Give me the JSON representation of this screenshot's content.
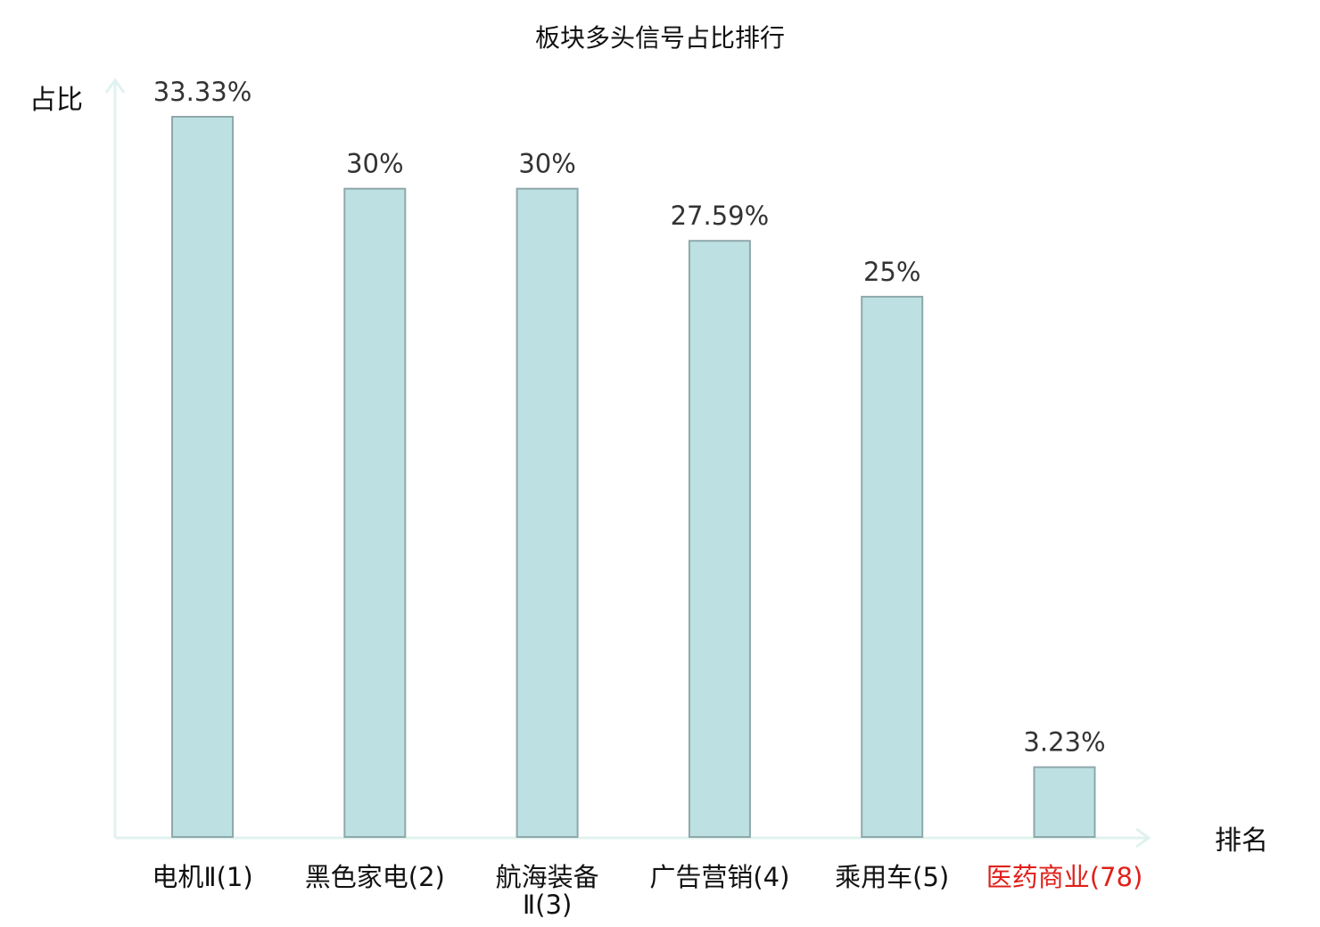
{
  "chart_data": {
    "type": "bar",
    "title": "板块多头信号占比排行",
    "ylabel": "占比",
    "xlabel": "排名",
    "categories": [
      [
        "电机Ⅱ(1)"
      ],
      [
        "黑色家电(2)"
      ],
      [
        "航海装备",
        "Ⅱ(3)"
      ],
      [
        "广告营销(4)"
      ],
      [
        "乘用车(5)"
      ],
      [
        "医药商业(78)"
      ]
    ],
    "values": [
      33.33,
      30,
      30,
      27.59,
      25,
      3.23
    ],
    "value_labels": [
      "33.33%",
      "30%",
      "30%",
      "27.59%",
      "25%",
      "3.23%"
    ],
    "highlight_index": 5,
    "ylim": [
      0,
      33.33
    ],
    "grid": false,
    "colors": {
      "bar_fill": "#bde1e3",
      "bar_stroke": "#8fa8aa",
      "axis": "#e0f2ef",
      "label": "#111111",
      "highlight_label": "#e0201a",
      "value_label": "#333333"
    }
  }
}
